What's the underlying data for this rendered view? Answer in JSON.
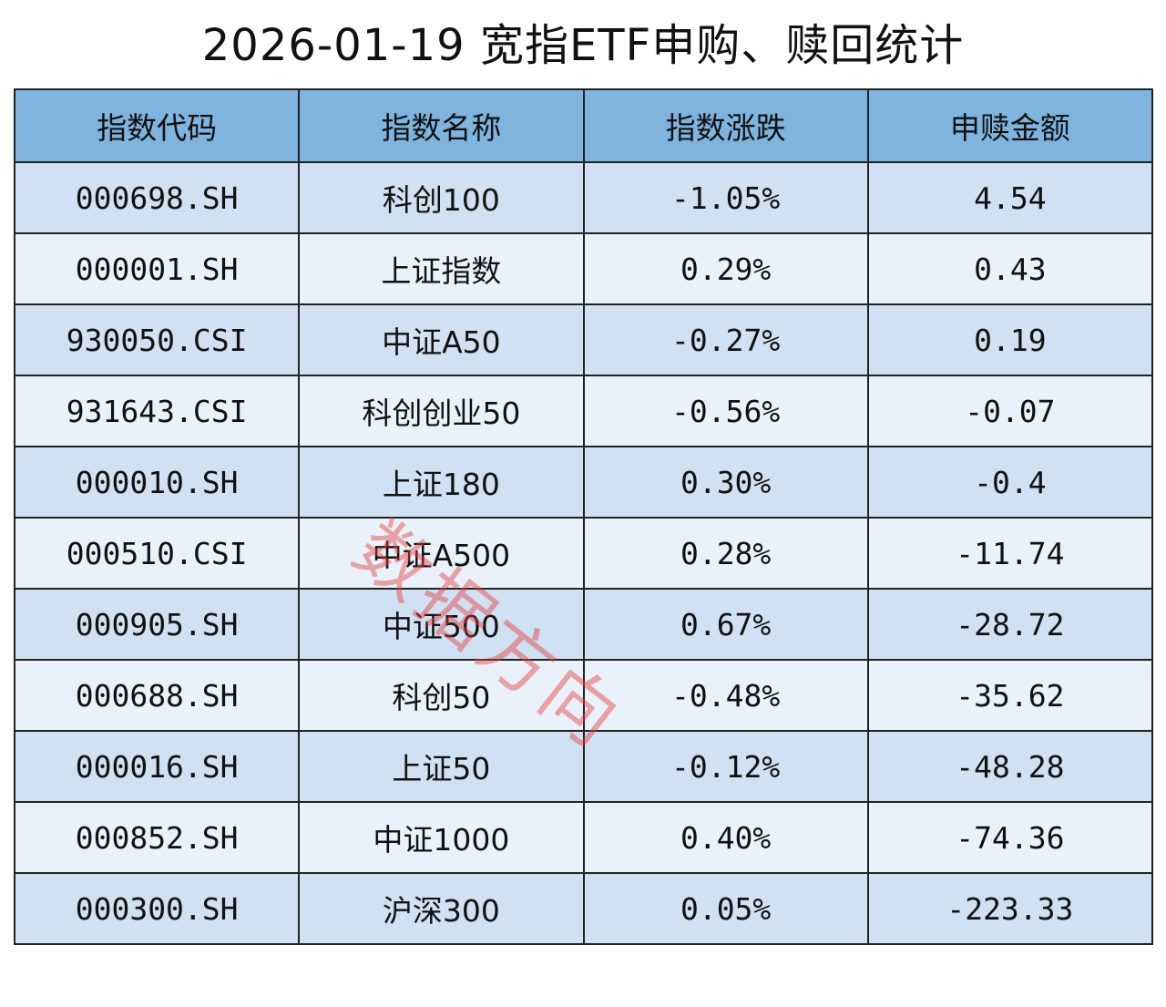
{
  "title": "2026-01-19 宽指ETF申购、赎回统计",
  "table": {
    "header": [
      "指数代码",
      "指数名称",
      "指数涨跌",
      "申赎金额"
    ],
    "rows": [
      [
        "000698.SH",
        "科创100",
        "-1.05%",
        "4.54"
      ],
      [
        "000001.SH",
        "上证指数",
        "0.29%",
        "0.43"
      ],
      [
        "930050.CSI",
        "中证A50",
        "-0.27%",
        "0.19"
      ],
      [
        "931643.CSI",
        "科创创业50",
        "-0.56%",
        "-0.07"
      ],
      [
        "000010.SH",
        "上证180",
        "0.30%",
        "-0.4"
      ],
      [
        "000510.CSI",
        "中证A500",
        "0.28%",
        "-11.74"
      ],
      [
        "000905.SH",
        "中证500",
        "0.67%",
        "-28.72"
      ],
      [
        "000688.SH",
        "科创50",
        "-0.48%",
        "-35.62"
      ],
      [
        "000016.SH",
        "上证50",
        "-0.12%",
        "-48.28"
      ],
      [
        "000852.SH",
        "中证1000",
        "0.40%",
        "-74.36"
      ],
      [
        "000300.SH",
        "沪深300",
        "0.05%",
        "-223.33"
      ]
    ]
  },
  "watermark": "数据方向"
}
